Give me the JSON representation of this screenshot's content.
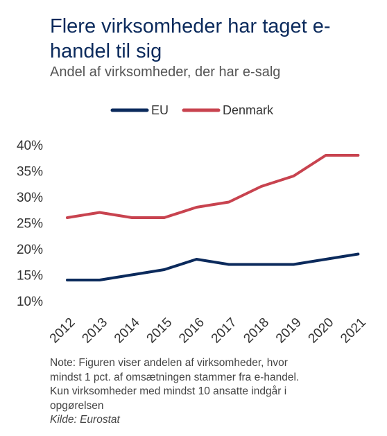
{
  "title": "Flere virksomheder har taget e-handel til sig",
  "subtitle": "Andel af virksomheder, der har e-salg",
  "note_lines": [
    "Note: Figuren viser andelen af virksomheder, hvor",
    "mindst 1 pct. af omsætningen stammer fra e-handel.",
    "Kun virksomheder med mindst 10 ansatte indgår i",
    "opgørelsen"
  ],
  "source": "Kilde: Eurostat",
  "colors": {
    "EU": "#0b2a5c",
    "Denmark": "#c8434f",
    "title": "#0b2a5c"
  },
  "chart_data": {
    "type": "line",
    "categories": [
      "2012",
      "2013",
      "2014",
      "2015",
      "2016",
      "2017",
      "2018",
      "2019",
      "2020",
      "2021"
    ],
    "series": [
      {
        "name": "EU",
        "values": [
          14,
          14,
          15,
          16,
          18,
          17,
          17,
          17,
          18,
          19
        ]
      },
      {
        "name": "Denmark",
        "values": [
          26,
          27,
          26,
          26,
          28,
          29,
          32,
          34,
          38,
          38
        ]
      }
    ],
    "ylim": [
      10,
      40
    ],
    "yticks": [
      "10%",
      "15%",
      "20%",
      "25%",
      "30%",
      "35%",
      "40%"
    ],
    "legend_position": "top-center",
    "grid": false
  }
}
